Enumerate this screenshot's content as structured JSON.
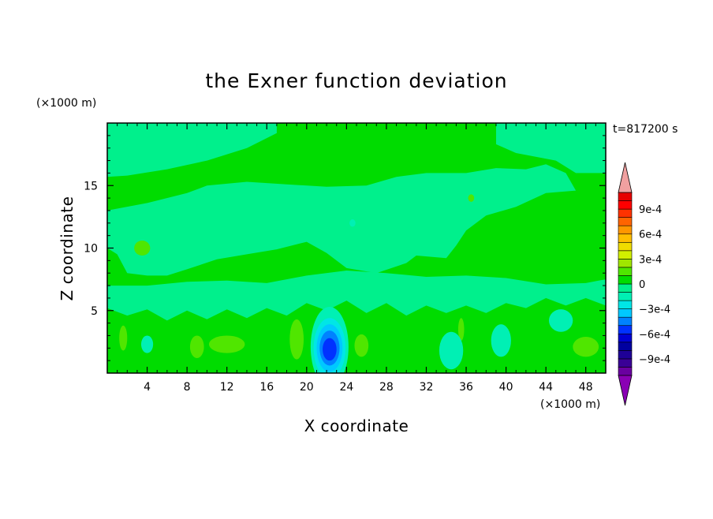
{
  "chart_data": {
    "type": "heatmap",
    "title": "the Exner function deviation",
    "xlabel": "X coordinate",
    "ylabel": "Z coordinate",
    "x_unit": "(×1000 m)",
    "y_unit": "(×1000 m)",
    "time_label": "t=817200 s",
    "xlim": [
      0,
      50
    ],
    "ylim": [
      0,
      20
    ],
    "x_ticks": [
      4,
      8,
      12,
      16,
      20,
      24,
      28,
      32,
      36,
      40,
      44,
      48
    ],
    "x_tick_labels": [
      "4",
      "8",
      "12",
      "16",
      "20",
      "24",
      "28",
      "32",
      "36",
      "40",
      "44",
      "48"
    ],
    "y_ticks": [
      5,
      10,
      15
    ],
    "y_tick_labels": [
      "5",
      "10",
      "15"
    ],
    "colorbar": {
      "levels": [
        -0.0011,
        -0.001,
        -0.0009,
        -0.0008,
        -0.0007,
        -0.0006,
        -0.0005,
        -0.0004,
        -0.0003,
        -0.0002,
        -0.0001,
        0,
        0.0001,
        0.0002,
        0.0003,
        0.0004,
        0.0005,
        0.0006,
        0.0007,
        0.0008,
        0.0009,
        0.001,
        0.0011
      ],
      "colors": [
        "#6a00a0",
        "#3a0096",
        "#1e0096",
        "#0000a0",
        "#0000d2",
        "#0032ff",
        "#0082ff",
        "#00c8ff",
        "#00e6e6",
        "#00f0b4",
        "#00f08c",
        "#00dc00",
        "#50e600",
        "#a0e600",
        "#d2f000",
        "#f0dc00",
        "#ffbe00",
        "#ff9600",
        "#ff6400",
        "#ff3200",
        "#ff0000",
        "#e60000"
      ],
      "under_color": "#8a00b4",
      "over_color": "#f0a0a0",
      "tick_values": [
        0.0009,
        0.0006,
        0.0003,
        0,
        -0.0003,
        -0.0006,
        -0.0009
      ],
      "tick_labels": [
        "9e-4",
        "6e-4",
        "3e-4",
        "0",
        "−3e-4",
        "−6e-4",
        "−9e-4"
      ]
    },
    "regions": [
      {
        "level": "0 to 1e-4",
        "color": "#00dc00",
        "shape": "background"
      },
      {
        "level": "-1e-4 to 0",
        "color": "#00f08c",
        "shape": "upper-left band",
        "points": [
          [
            0,
            20
          ],
          [
            17,
            20
          ],
          [
            17,
            19.2
          ],
          [
            14,
            18
          ],
          [
            10,
            17
          ],
          [
            6,
            16.3
          ],
          [
            2,
            15.8
          ],
          [
            0,
            15.7
          ]
        ]
      },
      {
        "level": "-1e-4 to 0",
        "color": "#00f08c",
        "shape": "upper-right band",
        "points": [
          [
            39,
            20
          ],
          [
            50,
            20
          ],
          [
            50,
            16
          ],
          [
            47,
            16
          ],
          [
            45,
            17
          ],
          [
            41,
            17.6
          ],
          [
            39,
            18.3
          ]
        ]
      },
      {
        "level": "-1e-4 to 0",
        "color": "#00f08c",
        "shape": "middle band",
        "points": [
          [
            0,
            13
          ],
          [
            4,
            13.6
          ],
          [
            8,
            14.4
          ],
          [
            10,
            15
          ],
          [
            14,
            15.3
          ],
          [
            18,
            15.1
          ],
          [
            22,
            14.9
          ],
          [
            26,
            15
          ],
          [
            29,
            15.7
          ],
          [
            32,
            16
          ],
          [
            36,
            16
          ],
          [
            39,
            16.4
          ],
          [
            42,
            16.3
          ],
          [
            44,
            16.7
          ],
          [
            46,
            16
          ],
          [
            47,
            14.6
          ],
          [
            44,
            14.4
          ],
          [
            41,
            13.3
          ],
          [
            38,
            12.6
          ],
          [
            36,
            11.4
          ],
          [
            35,
            10.2
          ],
          [
            34,
            9.2
          ],
          [
            31,
            9.4
          ],
          [
            30,
            8.8
          ],
          [
            27,
            8
          ],
          [
            24,
            8.4
          ],
          [
            22,
            9.6
          ],
          [
            20,
            10.5
          ],
          [
            17,
            9.9
          ],
          [
            14,
            9.5
          ],
          [
            11,
            9.1
          ],
          [
            8,
            8.3
          ],
          [
            6,
            7.8
          ],
          [
            4,
            7.8
          ],
          [
            2,
            8
          ],
          [
            1,
            9.5
          ],
          [
            0,
            10
          ],
          [
            0,
            13
          ]
        ]
      },
      {
        "level": "-1e-4 to 0",
        "color": "#00f08c",
        "shape": "lower band",
        "points": [
          [
            0,
            7
          ],
          [
            4,
            7
          ],
          [
            8,
            7.3
          ],
          [
            12,
            7.4
          ],
          [
            16,
            7.2
          ],
          [
            20,
            7.8
          ],
          [
            24,
            8.2
          ],
          [
            28,
            8
          ],
          [
            32,
            7.7
          ],
          [
            36,
            7.8
          ],
          [
            40,
            7.6
          ],
          [
            44,
            7.1
          ],
          [
            48,
            7.2
          ],
          [
            50,
            7.5
          ],
          [
            50,
            5.4
          ],
          [
            48,
            6
          ],
          [
            46,
            5.4
          ],
          [
            44,
            6
          ],
          [
            42,
            5.2
          ],
          [
            40,
            5.6
          ],
          [
            38,
            4.8
          ],
          [
            36,
            5.4
          ],
          [
            34,
            4.8
          ],
          [
            32,
            5.4
          ],
          [
            30,
            4.6
          ],
          [
            28,
            5.6
          ],
          [
            26,
            4.8
          ],
          [
            24,
            5.8
          ],
          [
            22,
            5
          ],
          [
            20,
            5.6
          ],
          [
            18,
            4.6
          ],
          [
            16,
            5.2
          ],
          [
            14,
            4.4
          ],
          [
            12,
            5.1
          ],
          [
            10,
            4.3
          ],
          [
            8,
            5
          ],
          [
            6,
            4.2
          ],
          [
            4,
            5.1
          ],
          [
            2,
            4.6
          ],
          [
            0,
            5.2
          ]
        ]
      },
      {
        "level": "1e-4 to 2e-4",
        "color": "#50e600",
        "shape": "blob",
        "center": [
          3.5,
          10
        ],
        "radius": [
          0.8,
          0.6
        ]
      },
      {
        "level": "1e-4 to 2e-4",
        "color": "#50e600",
        "shape": "blob",
        "center": [
          9,
          2.1
        ],
        "radius": [
          0.7,
          0.9
        ]
      },
      {
        "level": "1e-4 to 2e-4",
        "color": "#50e600",
        "shape": "blob",
        "center": [
          12,
          2.3
        ],
        "radius": [
          1.8,
          0.7
        ]
      },
      {
        "level": "1e-4 to 2e-4",
        "color": "#50e600",
        "shape": "blob",
        "center": [
          19,
          2.7
        ],
        "radius": [
          0.7,
          1.6
        ]
      },
      {
        "level": "1e-4 to 2e-4",
        "color": "#50e600",
        "shape": "blob",
        "center": [
          25.5,
          2.2
        ],
        "radius": [
          0.7,
          0.9
        ]
      },
      {
        "level": "1e-4 to 2e-4",
        "color": "#50e600",
        "shape": "blob",
        "center": [
          48,
          2.1
        ],
        "radius": [
          1.3,
          0.8
        ]
      },
      {
        "level": "1e-4 to 2e-4",
        "color": "#50e600",
        "shape": "blob",
        "center": [
          1.6,
          2.8
        ],
        "radius": [
          0.4,
          1.0
        ]
      },
      {
        "level": "1e-4 to 2e-4",
        "color": "#50e600",
        "shape": "blob",
        "center": [
          35.5,
          3.5
        ],
        "radius": [
          0.3,
          0.9
        ]
      },
      {
        "level": "-2e-4 to -1e-4",
        "color": "#00f0b4",
        "shape": "blob",
        "center": [
          34.5,
          1.8
        ],
        "radius": [
          1.2,
          1.5
        ]
      },
      {
        "level": "-2e-4 to -1e-4",
        "color": "#00f0b4",
        "shape": "blob",
        "center": [
          39.5,
          2.6
        ],
        "radius": [
          1.0,
          1.3
        ]
      },
      {
        "level": "-2e-4 to -1e-4",
        "color": "#00f0b4",
        "shape": "blob",
        "center": [
          45.5,
          4.2
        ],
        "radius": [
          1.2,
          0.9
        ]
      },
      {
        "level": "-2e-4 to -1e-4",
        "color": "#00f0b4",
        "shape": "blob",
        "center": [
          4,
          2.3
        ],
        "radius": [
          0.6,
          0.7
        ]
      },
      {
        "level": "-2e-4 to -1e-4",
        "color": "#00f0b4",
        "shape": "blob",
        "center": [
          22.3,
          2.1
        ],
        "radius": [
          1.9,
          3.2
        ]
      },
      {
        "level": "-3e-4 to -2e-4",
        "color": "#00e6e6",
        "shape": "blob",
        "center": [
          22.3,
          2.0
        ],
        "radius": [
          1.6,
          2.4
        ]
      },
      {
        "level": "-4e-4 to -3e-4",
        "color": "#00c8ff",
        "shape": "blob",
        "center": [
          22.3,
          2.0
        ],
        "radius": [
          1.3,
          1.9
        ]
      },
      {
        "level": "-5e-4 to -4e-4",
        "color": "#0082ff",
        "shape": "blob",
        "center": [
          22.3,
          2.0
        ],
        "radius": [
          1.0,
          1.4
        ]
      },
      {
        "level": "-6e-4 to -5e-4",
        "color": "#0032ff",
        "shape": "blob",
        "center": [
          22.3,
          1.9
        ],
        "radius": [
          0.7,
          0.9
        ]
      },
      {
        "level": "-2e-4 to -1e-4",
        "color": "#00f0b4",
        "shape": "blob",
        "center": [
          24.6,
          12
        ],
        "radius": [
          0.3,
          0.3
        ]
      },
      {
        "level": "1e-4 to 2e-4",
        "color": "#50e600",
        "shape": "blob",
        "center": [
          36.5,
          14
        ],
        "radius": [
          0.3,
          0.3
        ]
      }
    ]
  }
}
